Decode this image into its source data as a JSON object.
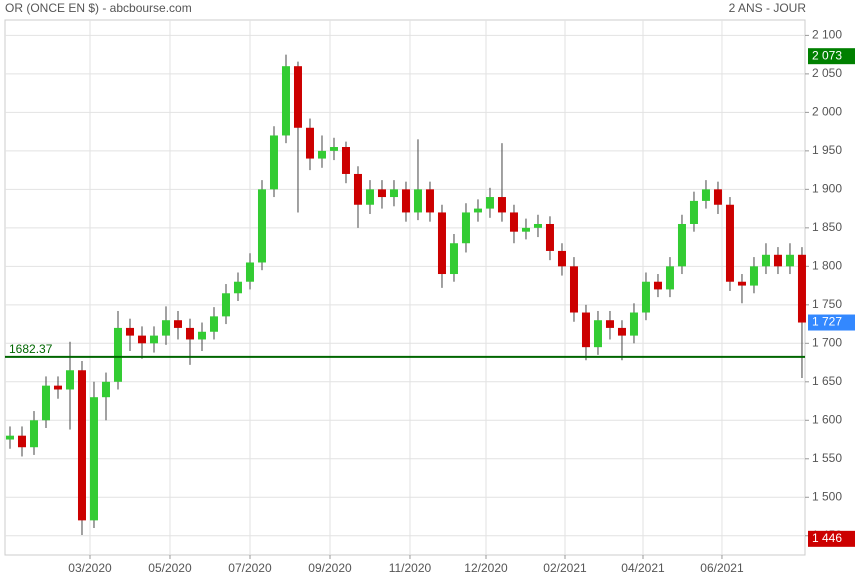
{
  "chart_data": {
    "type": "candlestick",
    "title": "OR (ONCE EN $) - abcbourse.com",
    "subtitle": "2 ANS - JOUR",
    "x": [
      2020.0,
      2020.025,
      2020.05,
      2020.075,
      2020.1,
      2020.125,
      2020.15,
      2020.175,
      2020.2,
      2020.225,
      2020.25,
      2020.275,
      2020.3,
      2020.325,
      2020.35,
      2020.375,
      2020.4,
      2020.425,
      2020.45,
      2020.475,
      2020.5,
      2020.525,
      2020.55,
      2020.575,
      2020.6,
      2020.625,
      2020.65,
      2020.675,
      2020.7,
      2020.725,
      2020.75,
      2020.775,
      2020.8,
      2020.825,
      2020.85,
      2020.875,
      2020.9,
      2020.925,
      2020.95,
      2020.975,
      2021.0,
      2021.025,
      2021.05,
      2021.075,
      2021.1,
      2021.125,
      2021.15,
      2021.175,
      2021.2,
      2021.225,
      2021.25,
      2021.275,
      2021.3,
      2021.325,
      2021.35,
      2021.375,
      2021.4,
      2021.425,
      2021.45,
      2021.475,
      2021.5,
      2021.525,
      2021.55,
      2021.575,
      2021.6,
      2021.625,
      2021.65
    ],
    "open": [
      1575,
      1580,
      1565,
      1600,
      1645,
      1640,
      1665,
      1470,
      1630,
      1650,
      1720,
      1710,
      1700,
      1710,
      1730,
      1720,
      1705,
      1715,
      1735,
      1765,
      1780,
      1805,
      1900,
      1970,
      2060,
      1980,
      1940,
      1950,
      1955,
      1920,
      1880,
      1900,
      1890,
      1900,
      1870,
      1900,
      1870,
      1790,
      1830,
      1870,
      1875,
      1890,
      1870,
      1845,
      1850,
      1855,
      1820,
      1800,
      1740,
      1695,
      1730,
      1720,
      1710,
      1740,
      1780,
      1770,
      1800,
      1855,
      1885,
      1900,
      1880,
      1780,
      1775,
      1800,
      1815,
      1800,
      1815
    ],
    "high": [
      1592,
      1592,
      1612,
      1657,
      1657,
      1702,
      1677,
      1650,
      1662,
      1742,
      1732,
      1722,
      1722,
      1748,
      1742,
      1732,
      1727,
      1747,
      1777,
      1792,
      1817,
      1912,
      1982,
      2075,
      2066,
      1992,
      1970,
      1967,
      1962,
      1930,
      1912,
      1912,
      1912,
      1910,
      1965,
      1910,
      1880,
      1842,
      1882,
      1887,
      1902,
      1960,
      1880,
      1862,
      1867,
      1865,
      1830,
      1812,
      1750,
      1742,
      1742,
      1730,
      1752,
      1792,
      1790,
      1812,
      1867,
      1897,
      1912,
      1910,
      1890,
      1790,
      1812,
      1830,
      1825,
      1830,
      1825
    ],
    "low": [
      1563,
      1553,
      1555,
      1590,
      1628,
      1588,
      1451,
      1460,
      1600,
      1640,
      1690,
      1680,
      1688,
      1698,
      1705,
      1672,
      1690,
      1705,
      1725,
      1755,
      1770,
      1795,
      1890,
      1960,
      1870,
      1925,
      1928,
      1938,
      1908,
      1850,
      1868,
      1875,
      1878,
      1858,
      1860,
      1858,
      1772,
      1780,
      1818,
      1858,
      1863,
      1858,
      1830,
      1835,
      1838,
      1808,
      1788,
      1728,
      1678,
      1685,
      1705,
      1678,
      1700,
      1730,
      1760,
      1760,
      1790,
      1845,
      1875,
      1868,
      1768,
      1752,
      1765,
      1790,
      1790,
      1790,
      1655
    ],
    "close": [
      1580,
      1565,
      1600,
      1645,
      1640,
      1665,
      1470,
      1630,
      1650,
      1720,
      1710,
      1700,
      1710,
      1730,
      1720,
      1705,
      1715,
      1735,
      1765,
      1780,
      1805,
      1900,
      1970,
      2060,
      1980,
      1940,
      1950,
      1955,
      1920,
      1880,
      1900,
      1890,
      1900,
      1870,
      1900,
      1870,
      1790,
      1830,
      1870,
      1875,
      1890,
      1870,
      1845,
      1850,
      1855,
      1820,
      1800,
      1740,
      1695,
      1730,
      1720,
      1710,
      1740,
      1780,
      1770,
      1800,
      1855,
      1885,
      1900,
      1880,
      1780,
      1775,
      1800,
      1815,
      1800,
      1815,
      1727
    ],
    "up_color": "#33cc33",
    "down_color": "#cc0000",
    "xlim": [
      2019.9896,
      2021.6563
    ],
    "xticks": [
      {
        "value": 2020.1667,
        "label": "03/2020"
      },
      {
        "value": 2020.3333,
        "label": "05/2020"
      },
      {
        "value": 2020.5,
        "label": "07/2020"
      },
      {
        "value": 2020.6667,
        "label": "09/2020"
      },
      {
        "value": 2020.8333,
        "label": "11/2020"
      },
      {
        "value": 2020.9917,
        "label": "12/2020"
      },
      {
        "value": 2021.1563,
        "label": "02/2021"
      },
      {
        "value": 2021.3188,
        "label": "04/2021"
      },
      {
        "value": 2021.4833,
        "label": "06/2021"
      }
    ],
    "ylim": [
      1425,
      2120
    ],
    "yticks": [
      {
        "value": 1450,
        "label": "1 450"
      },
      {
        "value": 1500,
        "label": "1 500"
      },
      {
        "value": 1550,
        "label": "1 550"
      },
      {
        "value": 1600,
        "label": "1 600"
      },
      {
        "value": 1650,
        "label": "1 650"
      },
      {
        "value": 1700,
        "label": "1 700"
      },
      {
        "value": 1750,
        "label": "1 750"
      },
      {
        "value": 1800,
        "label": "1 800"
      },
      {
        "value": 1850,
        "label": "1 850"
      },
      {
        "value": 1900,
        "label": "1 900"
      },
      {
        "value": 1950,
        "label": "1 950"
      },
      {
        "value": 2000,
        "label": "2 000"
      },
      {
        "value": 2050,
        "label": "2 050"
      },
      {
        "value": 2100,
        "label": "2 100"
      }
    ],
    "grid": true,
    "reference_line": {
      "value": 1682.37,
      "label": "1682.37",
      "color": "#006600"
    },
    "badges": [
      {
        "value": 2073,
        "label": "2 073",
        "color": "#008000"
      },
      {
        "value": 1727,
        "label": "1 727",
        "color": "#3388ff"
      },
      {
        "value": 1446,
        "label": "1 446",
        "color": "#cc0000"
      }
    ]
  }
}
